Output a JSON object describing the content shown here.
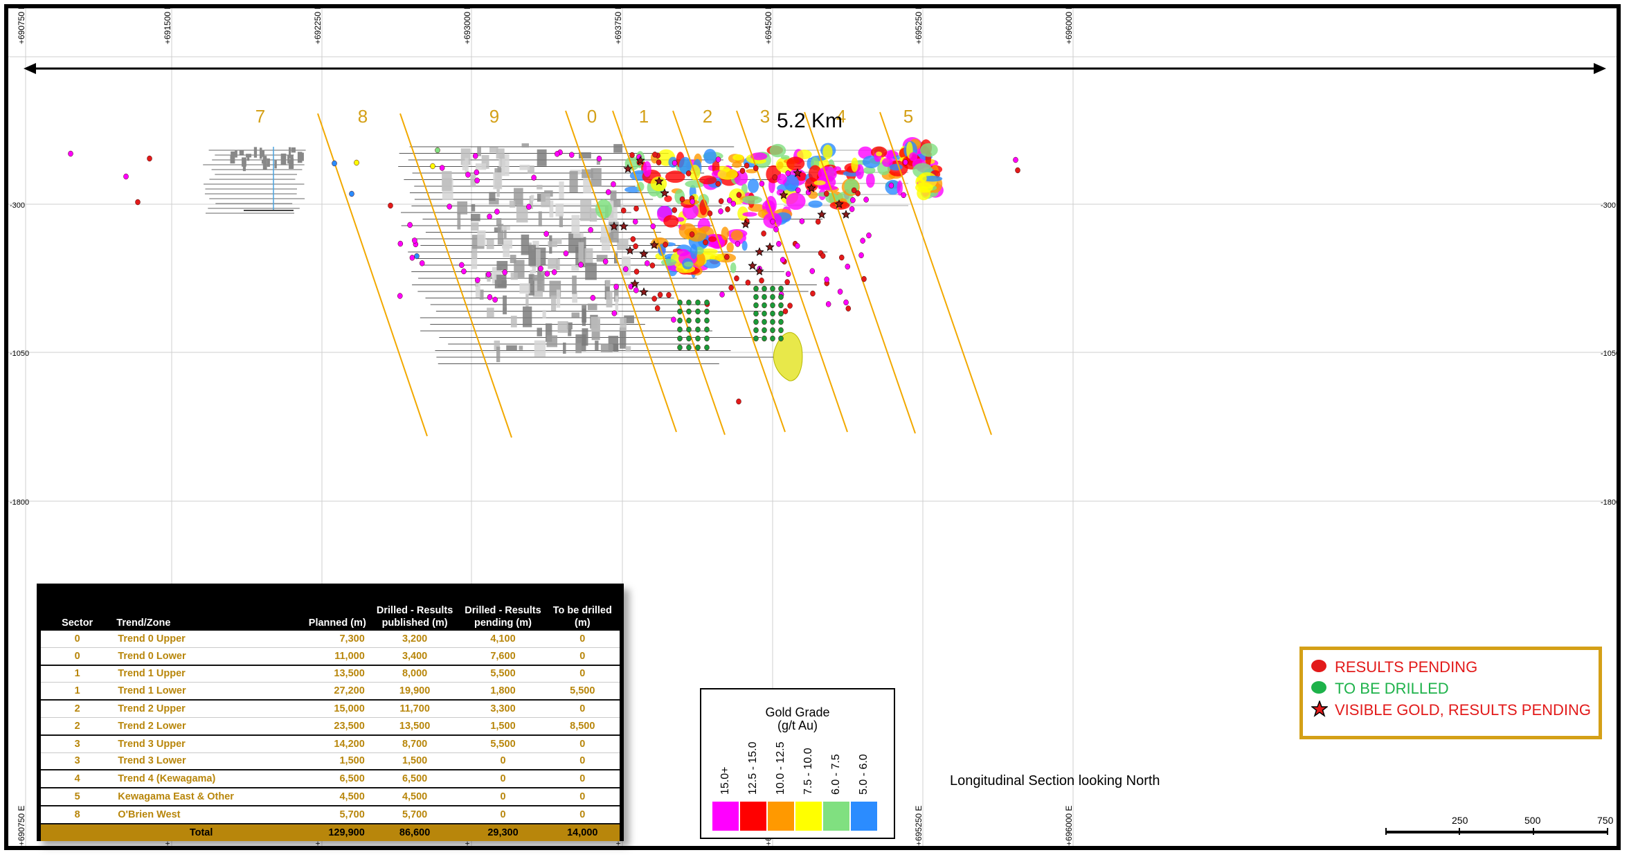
{
  "header": {
    "distance_label": "5.2 Km",
    "caption": "Longitudinal Section looking North"
  },
  "grid": {
    "eastings": [
      "+690750 E",
      "+691500 E",
      "+692250 E",
      "+693000 E",
      "+693750 E",
      "+694500 E",
      "+695250 E",
      "+696000 E"
    ],
    "elevations": [
      "-300",
      "-1050",
      "-1800"
    ]
  },
  "sectors": [
    "7",
    "8",
    "9",
    "0",
    "1",
    "2",
    "3",
    "4",
    "5"
  ],
  "scale_bar": [
    "250",
    "500",
    "750"
  ],
  "gold_grade_legend": {
    "title": "Gold Grade",
    "unit": "(g/t Au)",
    "classes": [
      {
        "label": "15.0+",
        "color": "#ff00ff"
      },
      {
        "label": "12.5 - 15.0",
        "color": "#ff0000"
      },
      {
        "label": "10.0 - 12.5",
        "color": "#ff9900"
      },
      {
        "label": "7.5 - 10.0",
        "color": "#ffff00"
      },
      {
        "label": "6.0 - 7.5",
        "color": "#80e080"
      },
      {
        "label": "5.0 - 6.0",
        "color": "#2b8cff"
      }
    ]
  },
  "status_legend": [
    {
      "label": "RESULTS PENDING",
      "color": "#e21a1a",
      "icon": "red-dot-icon"
    },
    {
      "label": "TO BE DRILLED",
      "color": "#1db24a",
      "icon": "green-dot-icon"
    },
    {
      "label": "VISIBLE GOLD, RESULTS PENDING",
      "color": "#e21a1a",
      "icon": "star-icon"
    }
  ],
  "drill_table": {
    "headers": [
      "Sector",
      "Trend/Zone",
      "Planned (m)",
      "Drilled - Results published (m)",
      "Drilled - Results pending (m)",
      "To be drilled (m)"
    ],
    "rows": [
      [
        "0",
        "Trend 0 Upper",
        "7,300",
        "3,200",
        "4,100",
        "0"
      ],
      [
        "0",
        "Trend 0 Lower",
        "11,000",
        "3,400",
        "7,600",
        "0"
      ],
      [
        "1",
        "Trend 1 Upper",
        "13,500",
        "8,000",
        "5,500",
        "0"
      ],
      [
        "1",
        "Trend 1 Lower",
        "27,200",
        "19,900",
        "1,800",
        "5,500"
      ],
      [
        "2",
        "Trend 2 Upper",
        "15,000",
        "11,700",
        "3,300",
        "0"
      ],
      [
        "2",
        "Trend 2 Lower",
        "23,500",
        "13,500",
        "1,500",
        "8,500"
      ],
      [
        "3",
        "Trend 3 Upper",
        "14,200",
        "8,700",
        "5,500",
        "0"
      ],
      [
        "3",
        "Trend 3 Lower",
        "1,500",
        "1,500",
        "0",
        "0"
      ],
      [
        "4",
        "Trend 4 (Kewagama)",
        "6,500",
        "6,500",
        "0",
        "0"
      ],
      [
        "5",
        "Kewagama East & Other",
        "4,500",
        "4,500",
        "0",
        "0"
      ],
      [
        "8",
        "O'Brien West",
        "5,700",
        "5,700",
        "0",
        "0"
      ]
    ],
    "total": [
      "",
      "Total",
      "129,900",
      "86,600",
      "29,300",
      "14,000"
    ]
  },
  "colors": {
    "sector_line": "#f2a900",
    "sector_label": "#d4a017",
    "table_gold": "#b8860b",
    "grid": "#cfcfcf"
  }
}
